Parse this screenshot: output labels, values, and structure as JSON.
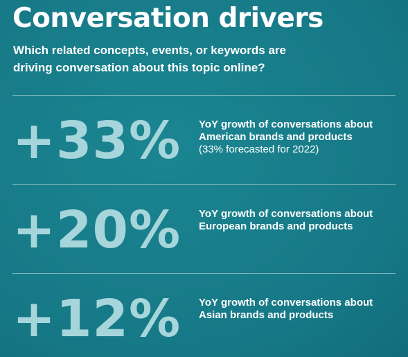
{
  "header": {
    "title": "Conversation drivers",
    "subtitle": [
      "Which related concepts, events, or keywords are",
      "driving conversation about this topic online?"
    ]
  },
  "items": [
    {
      "stat": "+33%",
      "lines": [
        "YoY growth of conversations about",
        "American brands and products",
        "(33% forecasted for 2022)"
      ]
    },
    {
      "stat": "+20%",
      "lines": [
        "YoY growth of conversations about",
        "European brands and products"
      ]
    },
    {
      "stat": "+12%",
      "lines": [
        "YoY growth of conversations about",
        "Asian brands and products"
      ]
    }
  ]
}
